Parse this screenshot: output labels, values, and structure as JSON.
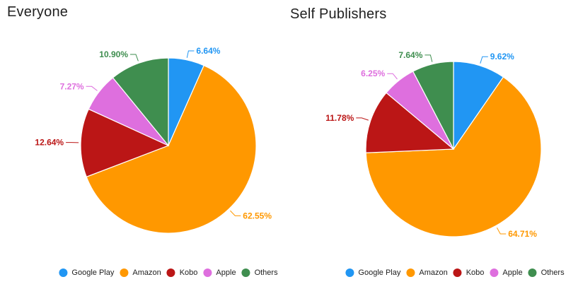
{
  "theme": {
    "background": "#ffffff",
    "title_color": "#212121",
    "legend_text_color": "#212121"
  },
  "chart_data": [
    {
      "type": "pie",
      "title": "Everyone",
      "categories": [
        "Google Play",
        "Amazon",
        "Kobo",
        "Apple",
        "Others"
      ],
      "values": [
        6.64,
        62.55,
        12.64,
        7.27,
        10.9
      ],
      "labels": [
        "6.64%",
        "62.55%",
        "12.64%",
        "7.27%",
        "10.90%"
      ],
      "colors": [
        "#2196F3",
        "#FF9800",
        "#BB1616",
        "#DE6FDE",
        "#3F8E4F"
      ],
      "legend_position": "bottom",
      "start_angle_deg": 0,
      "direction": "clockwise",
      "slice_border_color": "#ffffff"
    },
    {
      "type": "pie",
      "title": "Self Publishers",
      "categories": [
        "Google Play",
        "Amazon",
        "Kobo",
        "Apple",
        "Others"
      ],
      "values": [
        9.62,
        64.71,
        11.78,
        6.25,
        7.64
      ],
      "labels": [
        "9.62%",
        "64.71%",
        "11.78%",
        "6.25%",
        "7.64%"
      ],
      "colors": [
        "#2196F3",
        "#FF9800",
        "#BB1616",
        "#DE6FDE",
        "#3F8E4F"
      ],
      "legend_position": "bottom",
      "start_angle_deg": 0,
      "direction": "clockwise",
      "slice_border_color": "#ffffff"
    }
  ]
}
